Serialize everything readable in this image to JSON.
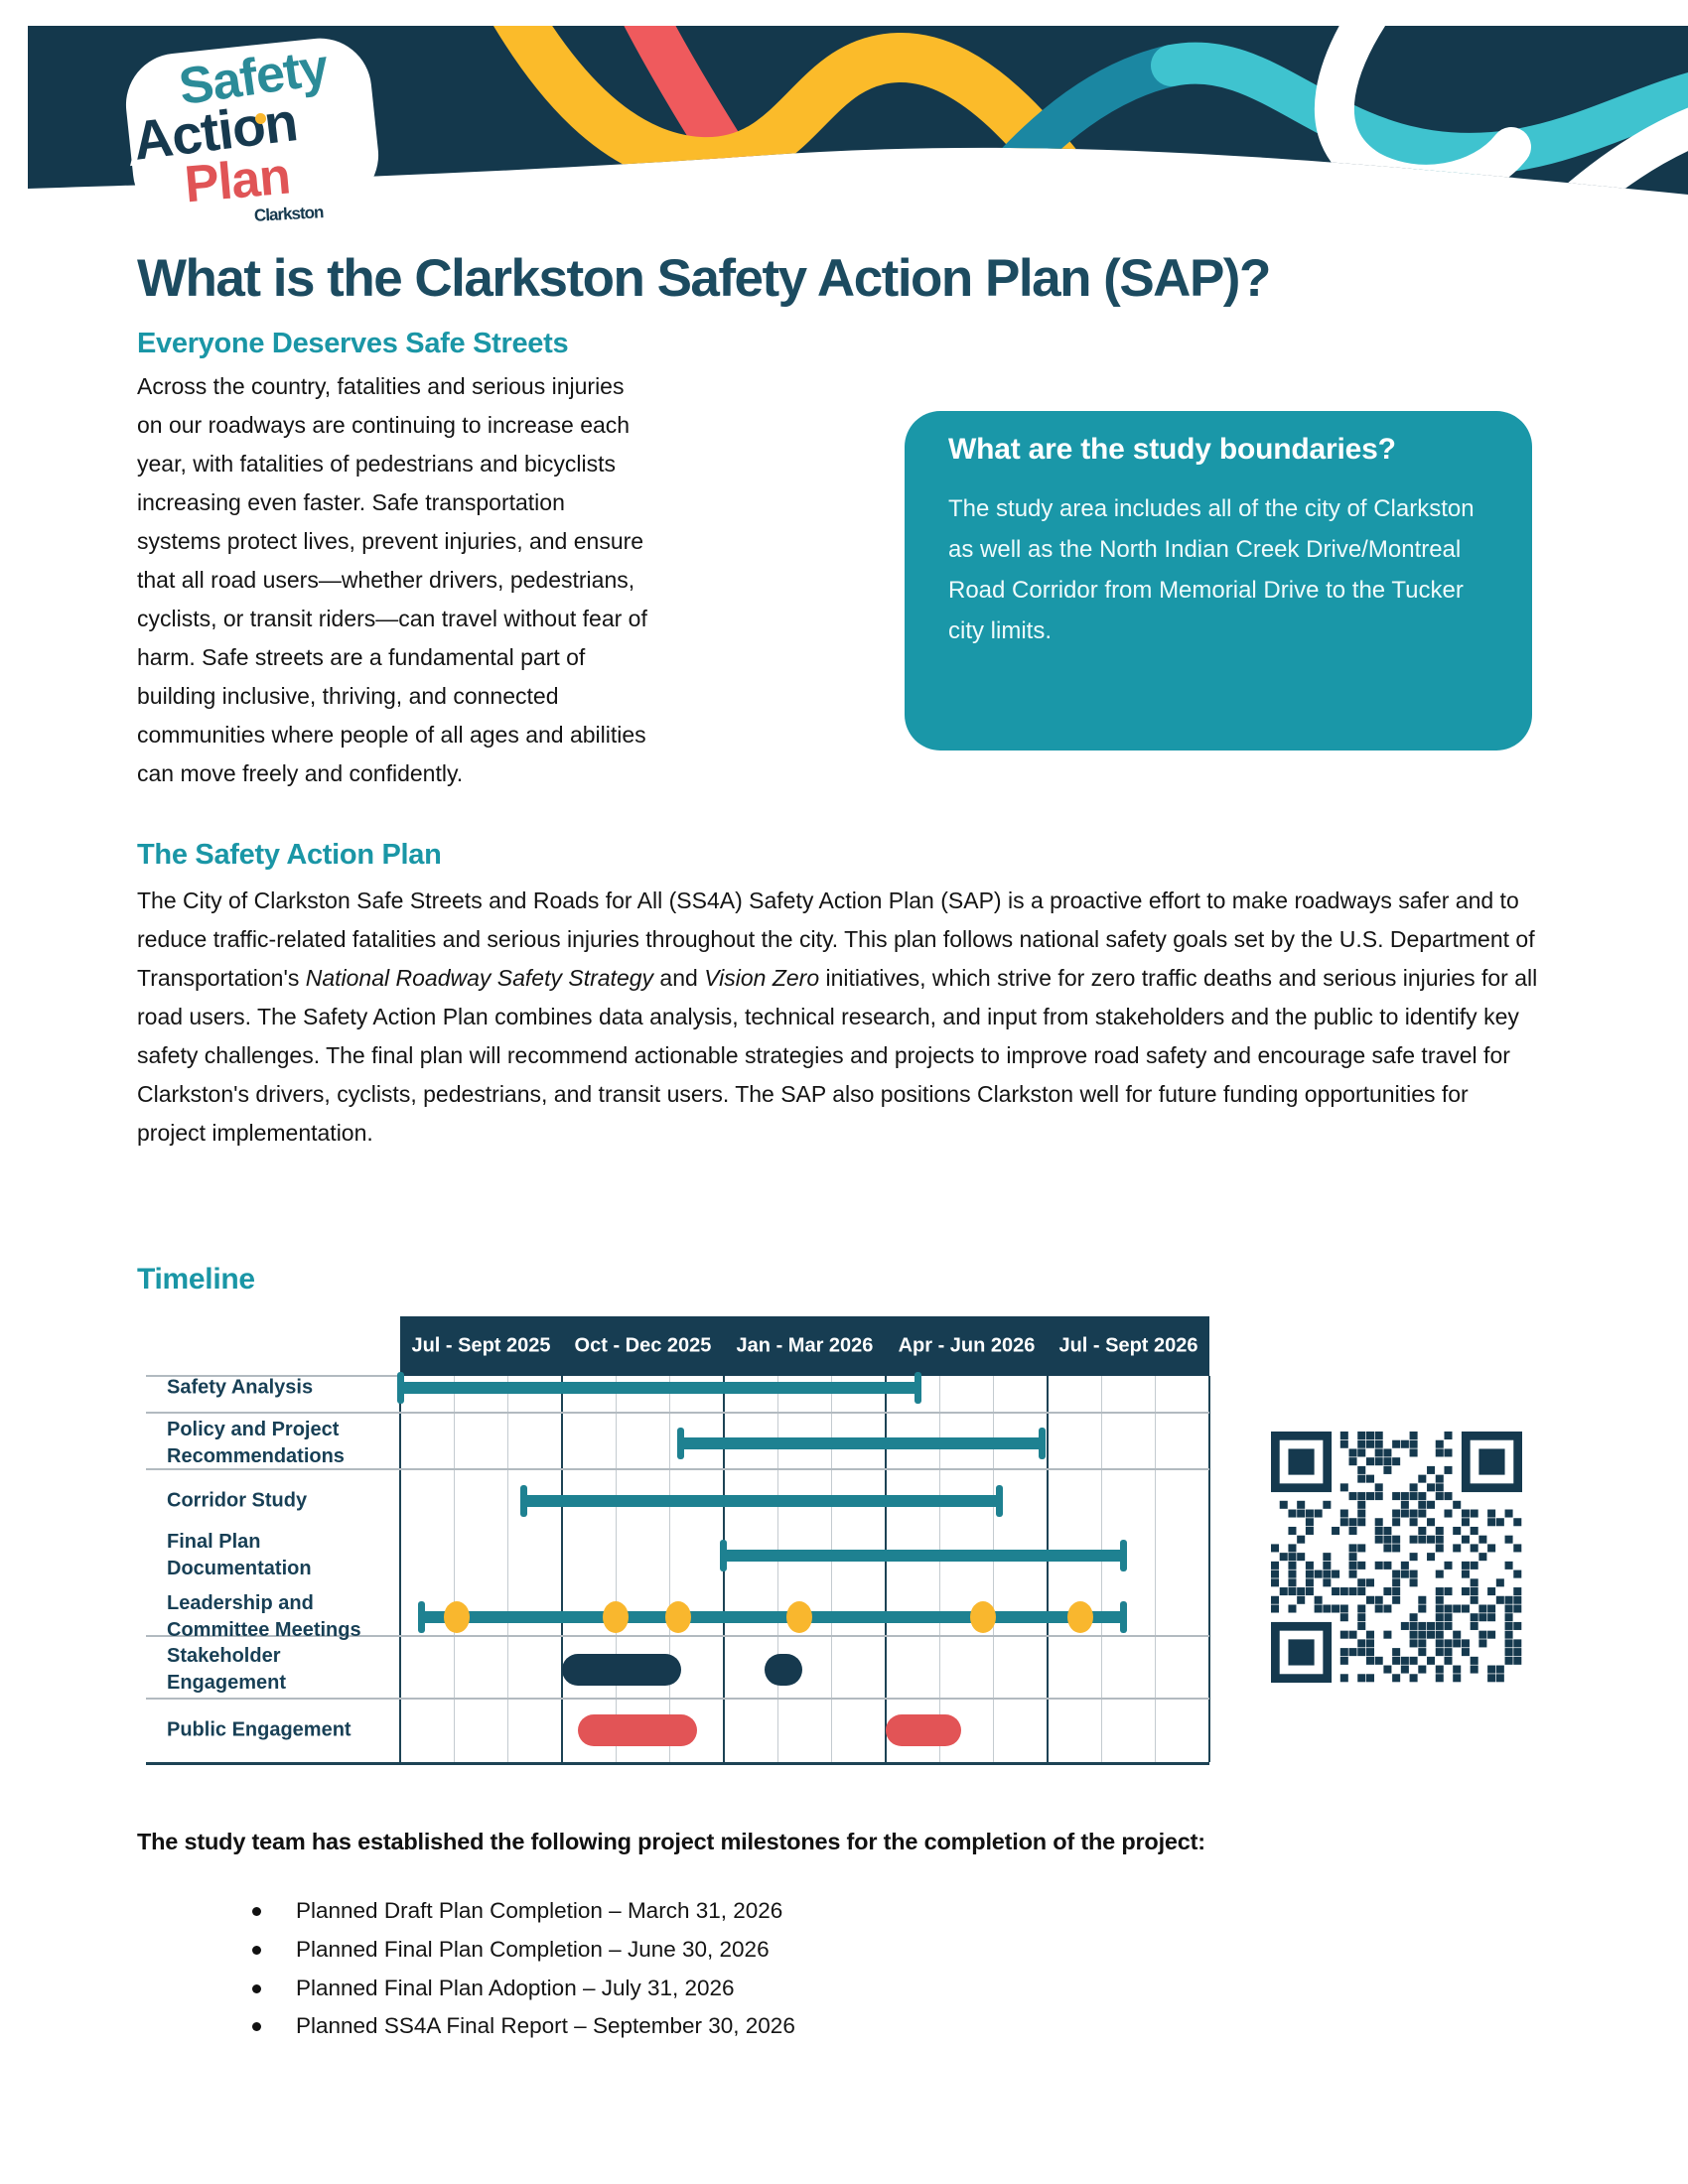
{
  "colors": {
    "banner_navy": "#14384c",
    "heading_teal": "#1a96a6",
    "title_dark": "#1c4b60",
    "callout_teal": "#1a97a8",
    "gantt_header_navy": "#173d52",
    "gantt_bar_teal": "#1e8191",
    "milestone_yellow": "#f9b72e",
    "stakeholder_navy": "#16394e",
    "public_red": "#e25456",
    "ribbon_yellow": "#fbbb2a",
    "ribbon_red": "#ef5a5d",
    "ribbon_dark_teal": "#1b87a2",
    "ribbon_turquoise": "#3fc3cf"
  },
  "banner": {
    "logo": {
      "word1": "Safety",
      "word2": "Action",
      "word3": "Plan",
      "sub": "Clarkston"
    }
  },
  "title": "What is the Clarkston Safety Action Plan (SAP)?",
  "sections": {
    "safe_streets": {
      "heading": "Everyone Deserves Safe Streets",
      "body": "Across the country, fatalities and serious injuries on our roadways are continuing to increase each year, with fatalities of pedestrians and bicyclists increasing even faster. Safe transportation systems protect lives, prevent injuries, and ensure that all road users—whether drivers, pedestrians, cyclists, or transit riders—can travel without fear of harm. Safe streets are a fundamental part of building inclusive, thriving, and connected communities where people of all ages and abilities can move freely and confidently."
    },
    "callout": {
      "heading": "What are the study boundaries?",
      "body": "The study area includes all of the city of Clarkston as well as the North Indian Creek Drive/Montreal Road Corridor from Memorial Drive to the Tucker city limits."
    },
    "sap": {
      "heading": "The Safety Action Plan",
      "body_segments": [
        {
          "text": "The City of Clarkston Safe Streets and Roads for All (SS4A) Safety Action Plan (SAP) is a proactive effort to make roadways safer and to reduce traffic-related fatalities and serious injuries throughout the city. This plan follows national safety goals set by the U.S. Department of Transportation's "
        },
        {
          "text": "National Roadway Safety Strategy",
          "italic": true
        },
        {
          "text": " and "
        },
        {
          "text": "Vision Zero",
          "italic": true
        },
        {
          "text": " initiatives, which strive for zero traffic deaths and serious injuries for all road users. The Safety Action Plan combines data analysis, technical research, and input from stakeholders and the public to identify key safety challenges. The final plan will recommend actionable strategies and projects to improve road safety and encourage safe travel for Clarkston's drivers, cyclists, pedestrians, and transit users. The SAP also positions Clarkston well for future funding opportunities for project implementation."
        }
      ]
    },
    "timeline": {
      "heading": "Timeline"
    },
    "milestones": {
      "intro": "The study team has established the following project milestones for the completion of the project:",
      "items": [
        "Planned Draft Plan Completion – March 31, 2026",
        "Planned Final Plan Completion – June 30, 2026",
        "Planned Final Plan Adoption – July 31, 2026",
        "Planned SS4A Final Report – September 30, 2026"
      ]
    }
  },
  "chart_data": {
    "type": "gantt",
    "title": "Timeline",
    "axis": {
      "origin_month": "Jul 2025",
      "total_months": 15,
      "quarter_labels": [
        "Jul - Sept 2025",
        "Oct - Dec 2025",
        "Jan - Mar 2026",
        "Apr - Jun 2026",
        "Jul - Sept 2026"
      ]
    },
    "rows": [
      {
        "label": "Safety Analysis",
        "type": "bar",
        "start_month": 0.0,
        "end_month": 9.6
      },
      {
        "label": "Policy and Project\nRecommendations",
        "type": "bar",
        "start_month": 5.2,
        "end_month": 11.9
      },
      {
        "label": "Corridor Study",
        "type": "bar",
        "start_month": 2.3,
        "end_month": 11.1
      },
      {
        "label": "Final Plan Documentation",
        "type": "bar",
        "start_month": 6.0,
        "end_month": 13.4
      },
      {
        "label": "Leadership and\nCommittee Meetings",
        "type": "bar_with_milestones",
        "start_month": 0.4,
        "end_month": 13.4,
        "milestone_months": [
          1.05,
          4.0,
          5.15,
          7.4,
          10.8,
          12.6
        ]
      },
      {
        "label": "Stakeholder Engagement",
        "type": "pill",
        "color_key": "stakeholder_navy",
        "spans_months": [
          [
            3.0,
            5.2
          ],
          [
            6.75,
            7.45
          ]
        ]
      },
      {
        "label": "Public Engagement",
        "type": "pill",
        "color_key": "public_red",
        "spans_months": [
          [
            3.3,
            5.5
          ],
          [
            9.0,
            10.4
          ]
        ]
      }
    ],
    "legend_position": "none",
    "grid": "months (light) and quarters (dark)"
  },
  "qr": {
    "modules": 29,
    "seed": 1337
  }
}
